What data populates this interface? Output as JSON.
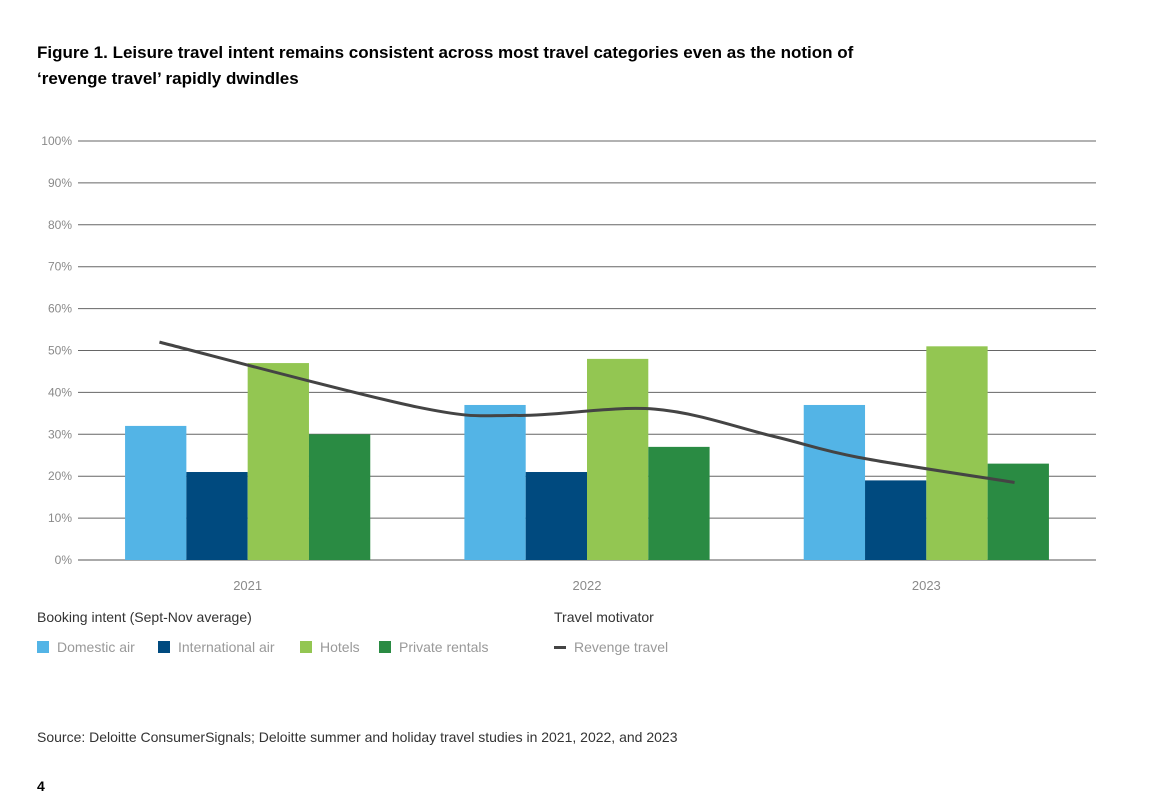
{
  "chart_data": {
    "type": "bar",
    "title": "Figure 1. Leisure travel intent remains consistent across most travel categories even as the notion of ‘revenge travel’ rapidly dwindles",
    "categories": [
      "2021",
      "2022",
      "2023"
    ],
    "ylim": [
      0,
      100
    ],
    "yticks": [
      "0%",
      "10%",
      "20%",
      "30%",
      "40%",
      "50%",
      "60%",
      "70%",
      "80%",
      "90%",
      "100%"
    ],
    "grid": true,
    "series": [
      {
        "name": "Domestic air",
        "color": "#53b4e6",
        "values": [
          32,
          37,
          37
        ]
      },
      {
        "name": "International air",
        "color": "#004a7f",
        "values": [
          21,
          21,
          19
        ]
      },
      {
        "name": "Hotels",
        "color": "#93c652",
        "values": [
          47,
          48,
          51
        ]
      },
      {
        "name": "Private rentals",
        "color": "#2a8b43",
        "values": [
          30,
          27,
          23
        ]
      }
    ],
    "line": {
      "name": "Revenge travel",
      "color": "#444444",
      "points": [
        [
          -0.26,
          52
        ],
        [
          0.5,
          36.5
        ],
        [
          0.8,
          34.5
        ],
        [
          1.2,
          36
        ],
        [
          1.55,
          29.5
        ],
        [
          1.8,
          24.5
        ],
        [
          2.26,
          18.5
        ]
      ]
    },
    "legend_groups": {
      "booking": "Booking intent (Sept-Nov average)",
      "motivator": "Travel motivator"
    },
    "legend_placement": "bottom"
  },
  "source": "Source: Deloitte ConsumerSignals; Deloitte summer and holiday travel studies in 2021, 2022, and 2023",
  "page_number": "4"
}
